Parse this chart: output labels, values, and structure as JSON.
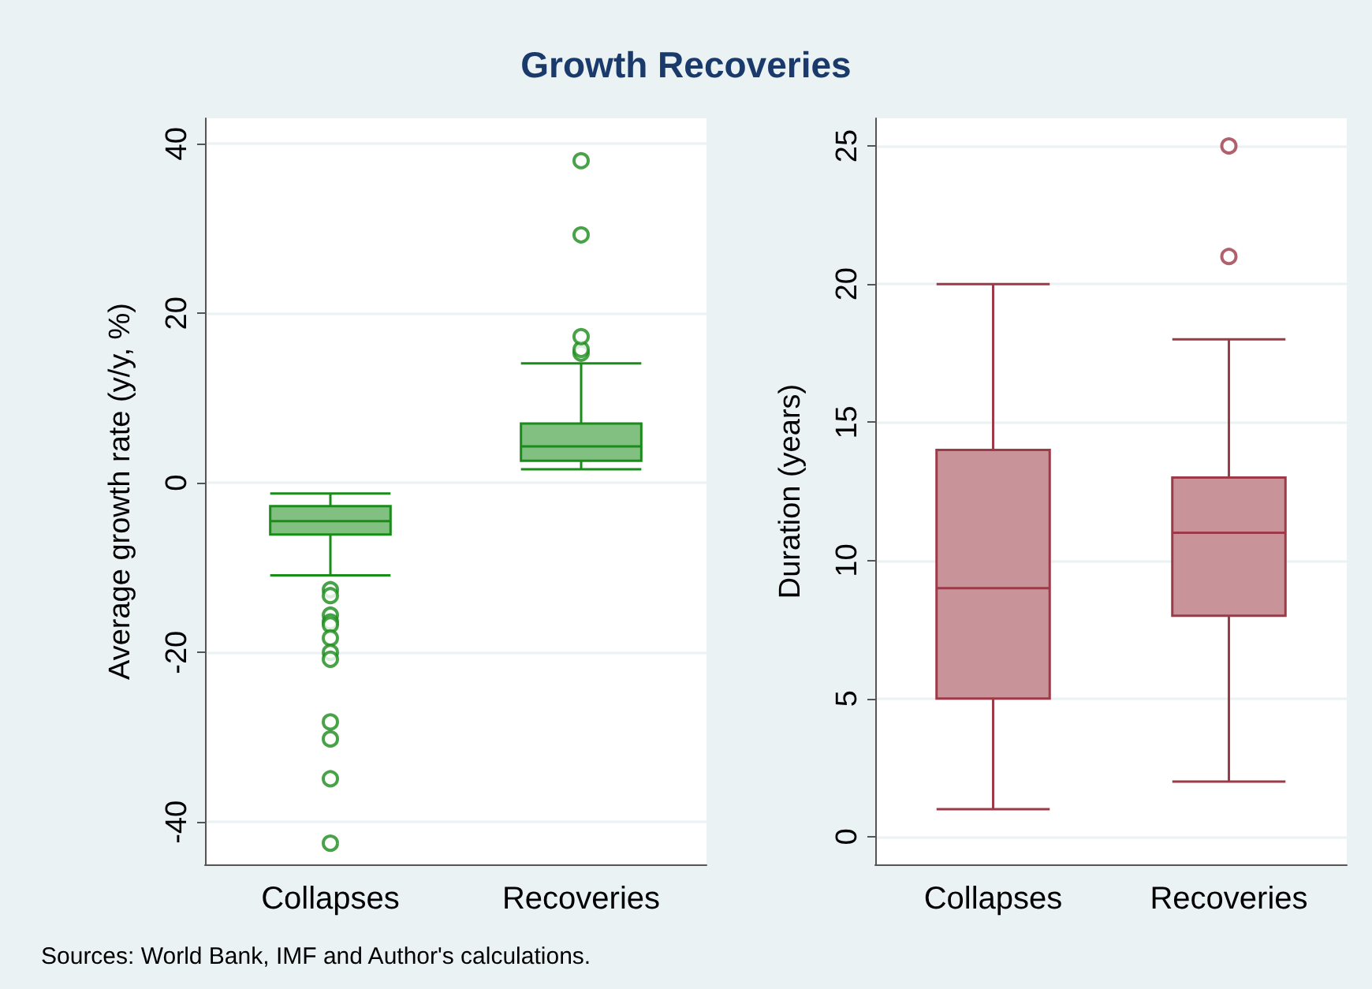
{
  "chart_data": [
    {
      "type": "box",
      "title": "Growth Recoveries",
      "annotations": [
        "Sources: World Bank, IMF and Author's calculations."
      ],
      "ylabel": "Average growth rate (y/y, %)",
      "categories": [
        "Collapses",
        "Recoveries"
      ],
      "color": "#1a8c1a",
      "ylim": [
        -45,
        43
      ],
      "yticks": [
        -40,
        -20,
        0,
        20,
        40
      ],
      "grid": "y",
      "boxes": [
        {
          "low": -10.9,
          "q1": -6.1,
          "median": -4.5,
          "q3": -2.75,
          "high": -1.25,
          "outliers": [
            -12.6,
            -13.3,
            -15.6,
            -16.4,
            -16.75,
            -18.3,
            -20,
            -20.8,
            -28.2,
            -30.2,
            -34.9,
            -42.5
          ]
        },
        {
          "low": 1.6,
          "q1": 2.6,
          "median": 4.3,
          "q3": 7,
          "high": 14.1,
          "outliers": [
            15.3,
            15.75,
            17.25,
            29.25,
            38
          ]
        }
      ]
    },
    {
      "type": "box",
      "ylabel": "Duration (years)",
      "categories": [
        "Collapses",
        "Recoveries"
      ],
      "color": "#9c3a48",
      "ylim": [
        -1,
        26
      ],
      "yticks": [
        0,
        5,
        10,
        15,
        20,
        25
      ],
      "grid": "y",
      "boxes": [
        {
          "low": 1,
          "q1": 5,
          "median": 9,
          "q3": 14,
          "high": 20
        },
        {
          "low": 2,
          "q1": 8,
          "median": 11,
          "q3": 13,
          "high": 18,
          "outliers": [
            21,
            25
          ]
        }
      ]
    }
  ]
}
